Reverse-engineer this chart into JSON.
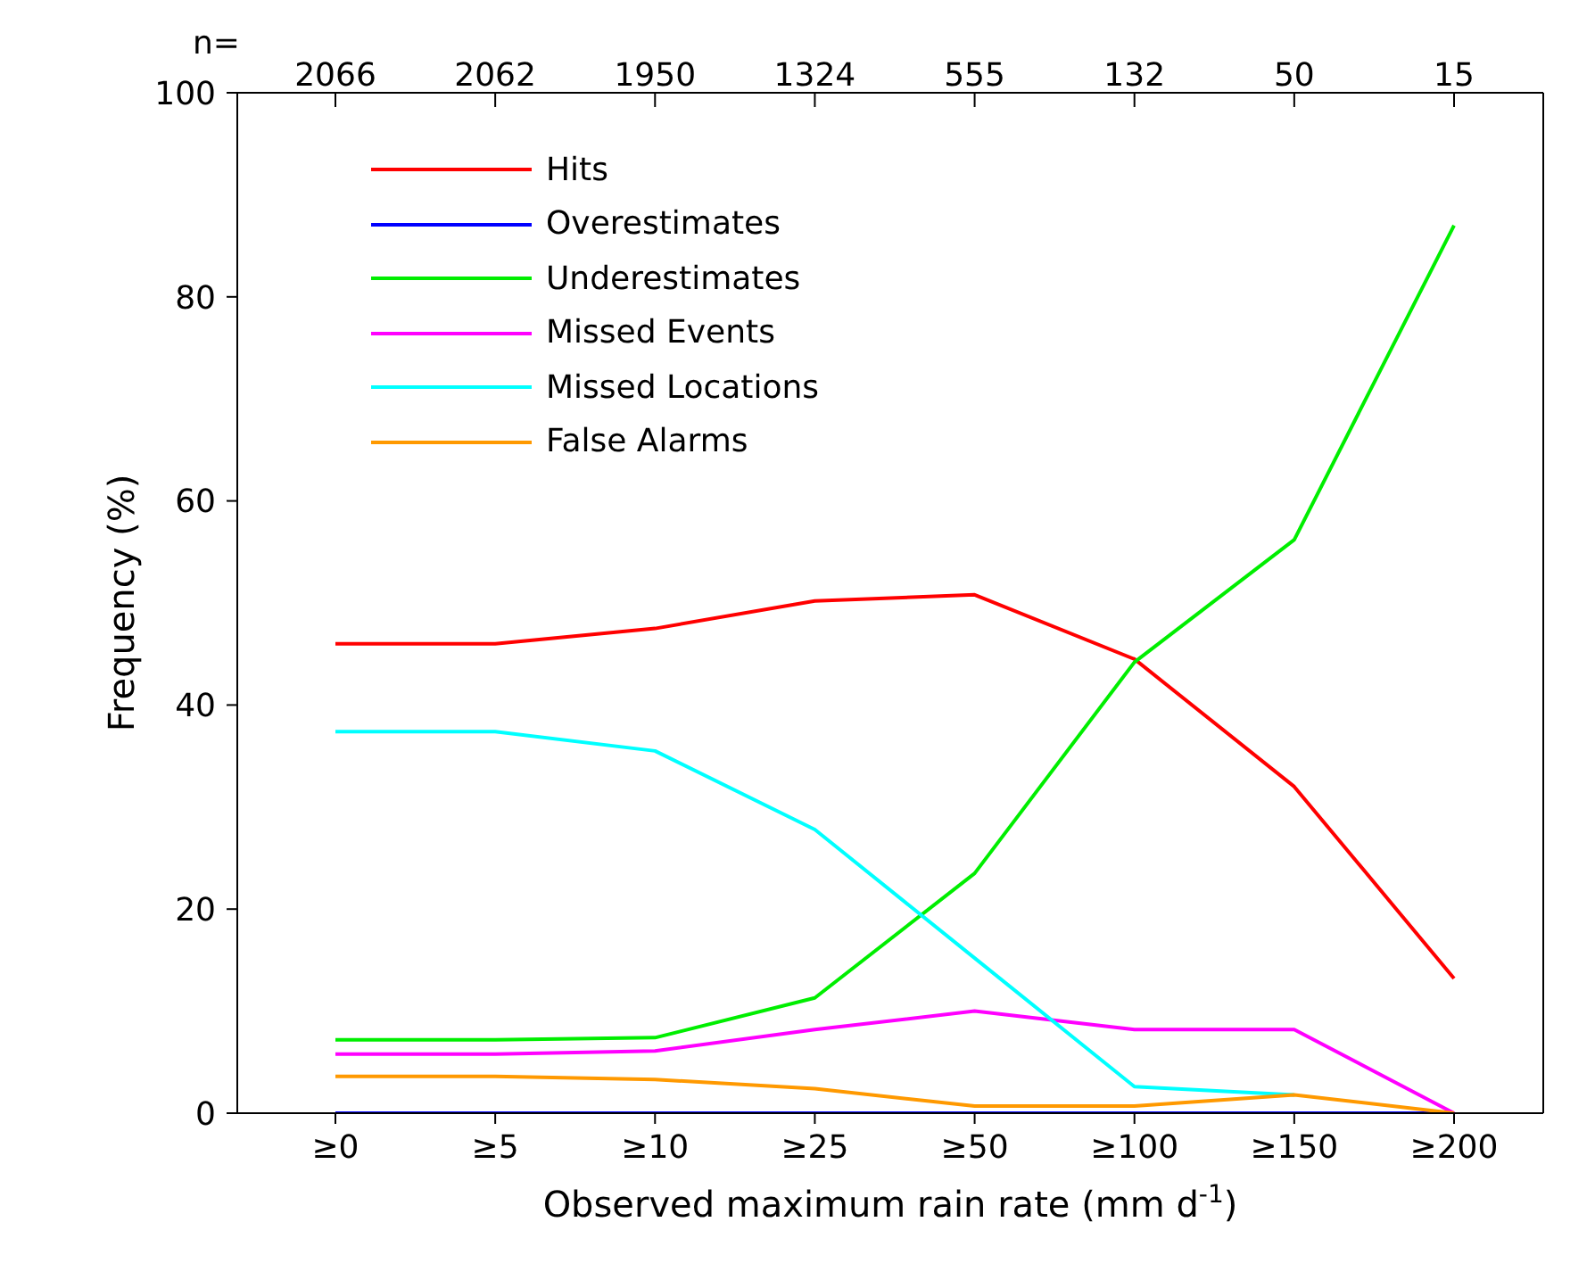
{
  "chart_data": {
    "type": "line",
    "xlabel": "Observed maximum rain rate (mm d$^{-1}$)",
    "ylabel": "Frequency (%)",
    "categories": [
      "≥0",
      "≥5",
      "≥10",
      "≥25",
      "≥50",
      "≥100",
      "≥150",
      "≥200"
    ],
    "series": [
      {
        "name": "Hits",
        "color": "#ff0000",
        "values": [
          46,
          46,
          47.5,
          50.2,
          50.8,
          44.5,
          32,
          13.2
        ]
      },
      {
        "name": "Overestimates",
        "color": "#0000ff",
        "values": [
          0,
          0,
          0,
          0,
          0,
          0,
          0,
          0
        ]
      },
      {
        "name": "Underestimates",
        "color": "#00ee00",
        "values": [
          7.2,
          7.2,
          7.4,
          11.3,
          23.5,
          44.2,
          56.2,
          87
        ]
      },
      {
        "name": "Missed Events",
        "color": "#ff00ff",
        "values": [
          5.8,
          5.8,
          6.1,
          8.2,
          10,
          8.2,
          8.2,
          0
        ]
      },
      {
        "name": "Missed Locations",
        "color": "#00ffff",
        "values": [
          37.4,
          37.4,
          35.5,
          27.8,
          15.2,
          2.6,
          1.8,
          null
        ]
      },
      {
        "name": "False Alarms",
        "color": "#ff9900",
        "values": [
          3.6,
          3.6,
          3.3,
          2.4,
          0.7,
          0.7,
          1.8,
          0
        ]
      }
    ],
    "ylim": [
      0,
      100
    ],
    "yticks": [
      0,
      20,
      40,
      60,
      80,
      100
    ],
    "annotations": [
      "n=",
      "2066",
      "2062",
      "1950",
      "1324",
      "555",
      "132",
      "50",
      "15"
    ],
    "grid": false,
    "legend": "top left",
    "marker": "none",
    "line_style": "solid"
  }
}
